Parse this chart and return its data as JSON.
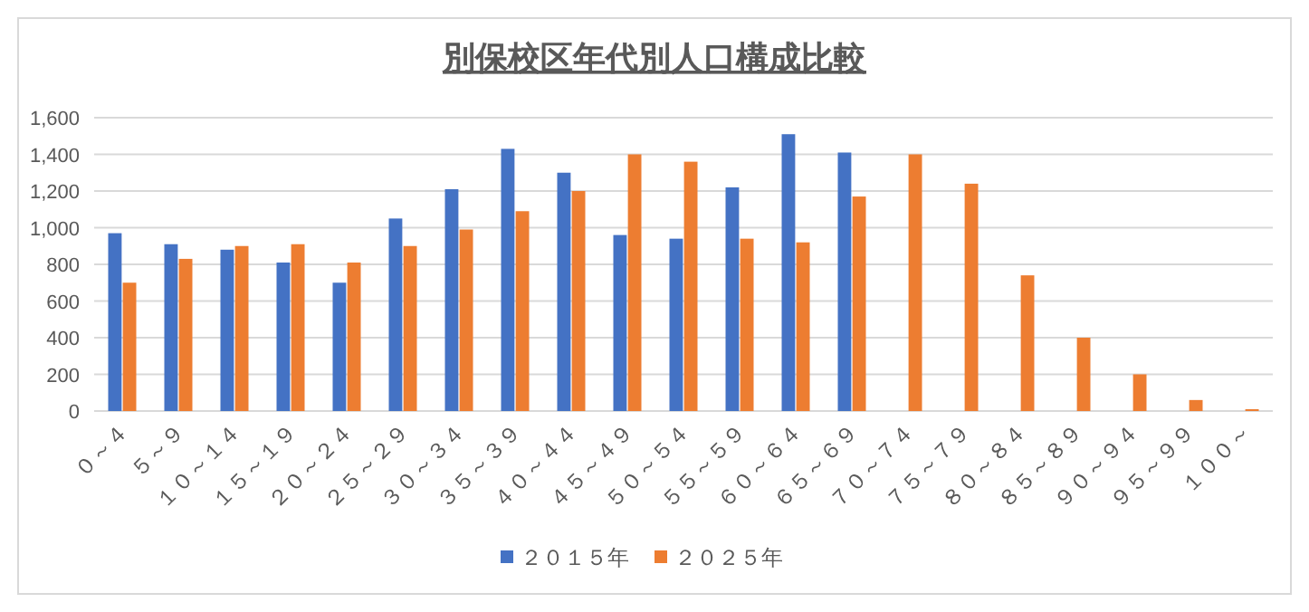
{
  "chart_data": {
    "type": "bar",
    "title": "別保校区年代別人口構成比較",
    "categories": [
      "０～４",
      "５～９",
      "１０～１４",
      "１５～１９",
      "２０～２４",
      "２５～２９",
      "３０～３４",
      "３５～３９",
      "４０～４４",
      "４５～４９",
      "５０～５４",
      "５５～５９",
      "６０～６４",
      "６５～６９",
      "７０～７４",
      "７５～７９",
      "８０～８４",
      "８５～８９",
      "９０～９４",
      "９５～９９",
      "１００～"
    ],
    "series": [
      {
        "name": "２０１５年",
        "color": "#4472c4",
        "values": [
          970,
          910,
          880,
          810,
          700,
          1050,
          1210,
          1430,
          1300,
          960,
          940,
          1220,
          1510,
          1410,
          null,
          null,
          null,
          null,
          null,
          null,
          null
        ]
      },
      {
        "name": "２０２５年",
        "color": "#ed7d31",
        "values": [
          700,
          830,
          900,
          910,
          810,
          900,
          990,
          1090,
          1200,
          1400,
          1360,
          940,
          920,
          1170,
          1400,
          1240,
          740,
          400,
          200,
          60,
          10
        ]
      }
    ],
    "ylim": [
      0,
      1600
    ],
    "yticks": [
      0,
      {
        "value": 200,
        "label": "200"
      },
      {
        "value": 400,
        "label": "400"
      },
      {
        "value": 600,
        "label": "600"
      },
      {
        "value": 800,
        "label": "800"
      },
      {
        "value": 1000,
        "label": "1,000"
      },
      {
        "value": 1200,
        "label": "1,200"
      },
      {
        "value": 1400,
        "label": "1,400"
      },
      {
        "value": 1600,
        "label": "1,600"
      }
    ],
    "grid": "y",
    "legend": "bottom"
  }
}
